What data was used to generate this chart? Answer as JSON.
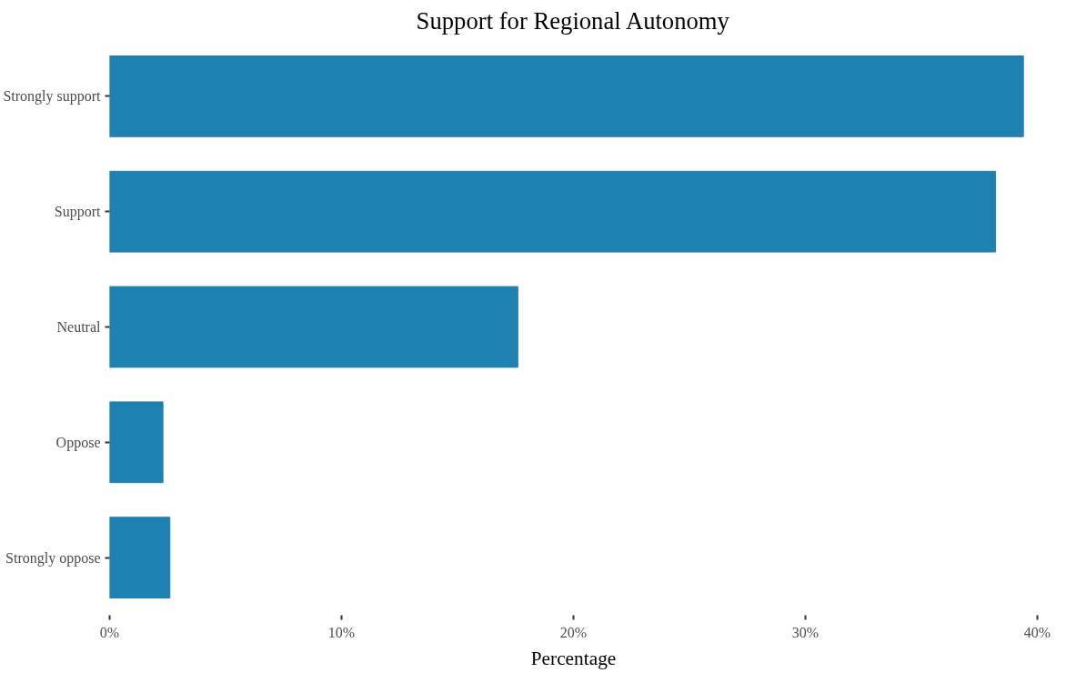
{
  "chart_data": {
    "type": "bar",
    "orientation": "horizontal",
    "title": "Support for Regional Autonomy",
    "xlabel": "Percentage",
    "categories": [
      "Strongly support",
      "Support",
      "Neutral",
      "Oppose",
      "Strongly oppose"
    ],
    "values": [
      39.4,
      38.2,
      17.6,
      2.3,
      2.6
    ],
    "color": "#1f80b2",
    "xticks": [
      {
        "value": 0,
        "label": "0%"
      },
      {
        "value": 10,
        "label": "10%"
      },
      {
        "value": 20,
        "label": "20%"
      },
      {
        "value": 30,
        "label": "30%"
      },
      {
        "value": 40,
        "label": "40%"
      }
    ],
    "xlim": [
      0,
      40
    ],
    "grid": false
  }
}
